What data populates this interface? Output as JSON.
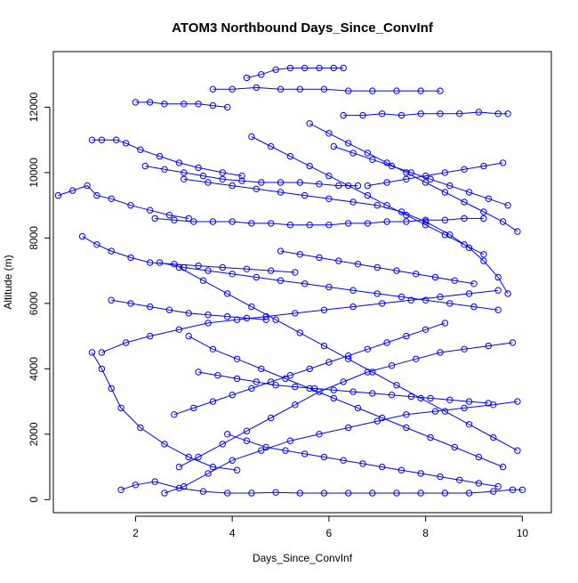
{
  "chart_data": {
    "type": "line",
    "title": "ATOM3 Northbound Days_Since_ConvInf",
    "xlabel": "Days_Since_ConvInf",
    "ylabel": "Altitude (m)",
    "xlim": [
      0.3,
      10.6
    ],
    "ylim": [
      -400,
      13700
    ],
    "x_ticks": [
      2,
      4,
      6,
      8,
      10
    ],
    "y_ticks": [
      0,
      2000,
      4000,
      6000,
      8000,
      10000,
      12000
    ],
    "x_tick_labels": [
      "2",
      "4",
      "6",
      "8",
      "10"
    ],
    "y_tick_labels": [
      "0",
      "2000",
      "4000",
      "6000",
      "8000",
      "10000",
      "12000"
    ],
    "grid": false,
    "legend": "none",
    "marker": "open-circle",
    "colors": {
      "series": "#0000ff",
      "axes": "#000000",
      "background": "#ffffff"
    },
    "series": [
      {
        "segments": [
          {
            "x": [
              0.4,
              0.7,
              1.0,
              1.2,
              1.5,
              1.9,
              2.3,
              2.7,
              3.1
            ],
            "y": [
              9300,
              9450,
              9600,
              9300,
              9200,
              9000,
              8850,
              8700,
              8600
            ]
          },
          {
            "x": [
              1.1,
              1.3,
              1.6,
              1.8,
              2.1,
              2.5,
              2.9,
              3.3,
              3.8,
              4.2
            ],
            "y": [
              11000,
              11000,
              11000,
              10900,
              10700,
              10500,
              10300,
              10150,
              10000,
              9900
            ]
          },
          {
            "x": [
              2.0,
              2.3,
              2.6,
              3.0,
              3.3,
              3.6,
              3.9
            ],
            "y": [
              12150,
              12150,
              12100,
              12100,
              12100,
              12050,
              12000
            ]
          },
          {
            "x": [
              4.3,
              4.6,
              4.9,
              5.2,
              5.5,
              5.8,
              6.1,
              6.3
            ],
            "y": [
              12900,
              13000,
              13150,
              13200,
              13200,
              13200,
              13200,
              13200
            ]
          },
          {
            "x": [
              3.6,
              4.0,
              4.5,
              5.0,
              5.4,
              5.9,
              6.4,
              6.9,
              7.4,
              7.9,
              8.3
            ],
            "y": [
              12550,
              12550,
              12600,
              12550,
              12550,
              12550,
              12500,
              12500,
              12500,
              12500,
              12500
            ]
          },
          {
            "x": [
              6.3,
              6.7,
              7.1,
              7.5,
              7.9,
              8.3,
              8.7,
              9.1,
              9.5,
              9.7
            ],
            "y": [
              11750,
              11750,
              11800,
              11750,
              11800,
              11800,
              11800,
              11850,
              11800,
              11800
            ]
          },
          {
            "x": [
              0.9,
              1.2,
              1.5,
              1.9,
              2.3,
              2.8,
              3.3,
              3.8,
              4.3,
              4.8,
              5.3
            ],
            "y": [
              8050,
              7800,
              7600,
              7400,
              7250,
              7200,
              7150,
              7100,
              7050,
              7000,
              6950
            ]
          },
          {
            "x": [
              1.1,
              1.3,
              1.5,
              1.7,
              2.1,
              2.6,
              3.1,
              3.6,
              4.1
            ],
            "y": [
              4500,
              4000,
              3400,
              2800,
              2200,
              1700,
              1300,
              1000,
              900
            ]
          },
          {
            "x": [
              1.7,
              2.0,
              2.4,
              2.9,
              3.4,
              3.9,
              4.4,
              4.9,
              5.4,
              5.9,
              6.4,
              6.9,
              7.4,
              7.9,
              8.4,
              8.9,
              9.4,
              9.8,
              10.0
            ],
            "y": [
              300,
              450,
              550,
              350,
              250,
              200,
              200,
              220,
              200,
              200,
              200,
              200,
              200,
              200,
              200,
              200,
              250,
              300,
              300
            ]
          },
          {
            "x": [
              2.6,
              3.0,
              3.5,
              4.0,
              4.6,
              5.2,
              5.8,
              6.4,
              7.0,
              7.6,
              8.2,
              8.8,
              9.4,
              9.9
            ],
            "y": [
              200,
              400,
              800,
              1200,
              1500,
              1800,
              2000,
              2200,
              2400,
              2600,
              2700,
              2800,
              2900,
              3000
            ]
          },
          {
            "x": [
              1.3,
              1.8,
              2.3,
              2.9,
              3.5,
              4.1,
              4.7,
              5.3,
              5.9,
              6.5,
              7.1,
              7.7,
              8.3,
              8.9,
              9.5
            ],
            "y": [
              4500,
              4800,
              5000,
              5200,
              5400,
              5500,
              5600,
              5700,
              5800,
              5900,
              6000,
              6100,
              6200,
              6300,
              6400
            ]
          },
          {
            "x": [
              9.7,
              9.5,
              9.2,
              8.9,
              8.5,
              8.0,
              7.5,
              7.0,
              6.5,
              6.0,
              5.5,
              5.0,
              4.5,
              4.0,
              3.5,
              3.0
            ],
            "y": [
              6300,
              6800,
              7300,
              7700,
              8100,
              8500,
              8800,
              9000,
              9100,
              9200,
              9300,
              9400,
              9500,
              9600,
              9700,
              9800
            ]
          },
          {
            "x": [
              2.9,
              3.3,
              3.8,
              4.3,
              4.8,
              5.3,
              5.8,
              6.3,
              6.8,
              7.3,
              7.8,
              8.3,
              8.8,
              9.3,
              9.8
            ],
            "y": [
              1000,
              1300,
              1700,
              2100,
              2500,
              2900,
              3300,
              3600,
              3900,
              4100,
              4300,
              4500,
              4600,
              4700,
              4800
            ]
          },
          {
            "x": [
              9.9,
              9.4,
              8.9,
              8.4,
              7.9,
              7.4,
              6.9,
              6.4,
              5.9,
              5.4,
              4.9,
              4.4,
              3.9,
              3.4,
              2.9
            ],
            "y": [
              1500,
              1900,
              2300,
              2700,
              3100,
              3500,
              3900,
              4300,
              4700,
              5100,
              5500,
              5900,
              6300,
              6700,
              7100
            ]
          },
          {
            "x": [
              3.1,
              3.6,
              4.1,
              4.6,
              5.1,
              5.6,
              6.1,
              6.6,
              7.1,
              7.6,
              8.1,
              8.6,
              9.1,
              9.6
            ],
            "y": [
              5000,
              4600,
              4300,
              4000,
              3700,
              3400,
              3100,
              2800,
              2500,
              2200,
              1900,
              1600,
              1300,
              1000
            ]
          },
          {
            "x": [
              4.4,
              4.8,
              5.2,
              5.6,
              6.0,
              6.4,
              6.8,
              7.2,
              7.6,
              8.0,
              8.4,
              8.8,
              9.2
            ],
            "y": [
              11100,
              10800,
              10500,
              10200,
              9900,
              9600,
              9300,
              9000,
              8700,
              8400,
              8100,
              7800,
              7500
            ]
          },
          {
            "x": [
              2.2,
              2.6,
              3.0,
              3.4,
              3.8,
              4.2,
              4.6,
              5.0,
              5.4,
              5.8,
              6.2,
              6.6
            ],
            "y": [
              10200,
              10100,
              10000,
              9900,
              9800,
              9750,
              9700,
              9700,
              9700,
              9650,
              9600,
              9600
            ]
          },
          {
            "x": [
              6.8,
              7.2,
              7.6,
              8.0,
              8.4,
              8.8,
              9.2,
              9.6
            ],
            "y": [
              9600,
              9700,
              9800,
              9900,
              10000,
              10100,
              10200,
              10300
            ]
          },
          {
            "x": [
              2.4,
              2.8,
              3.2,
              3.6,
              4.0,
              4.4,
              4.8,
              5.2,
              5.6,
              6.0,
              6.4,
              6.8,
              7.2,
              7.6,
              8.0,
              8.4,
              8.8,
              9.2
            ],
            "y": [
              8600,
              8550,
              8500,
              8500,
              8500,
              8450,
              8450,
              8400,
              8400,
              8400,
              8450,
              8450,
              8500,
              8500,
              8550,
              8550,
              8600,
              8600
            ]
          },
          {
            "x": [
              2.5,
              3.0,
              3.5,
              4.0,
              4.5,
              5.0,
              5.5,
              6.0,
              6.5,
              7.0,
              7.5,
              8.0,
              8.5,
              9.0,
              9.5
            ],
            "y": [
              7250,
              7100,
              7000,
              6900,
              6800,
              6700,
              6600,
              6500,
              6400,
              6300,
              6200,
              6100,
              6000,
              5900,
              5800
            ]
          },
          {
            "x": [
              3.3,
              3.7,
              4.1,
              4.5,
              4.9,
              5.3,
              5.7,
              6.1,
              6.5,
              6.9,
              7.3,
              7.7,
              8.1,
              8.5,
              8.9,
              9.3
            ],
            "y": [
              3900,
              3800,
              3700,
              3600,
              3500,
              3450,
              3400,
              3350,
              3300,
              3250,
              3200,
              3150,
              3100,
              3050,
              3000,
              2950
            ]
          },
          {
            "x": [
              3.9,
              4.3,
              4.7,
              5.1,
              5.5,
              5.9,
              6.3,
              6.7,
              7.1,
              7.5,
              7.9,
              8.3,
              8.7,
              9.1,
              9.5
            ],
            "y": [
              2000,
              1800,
              1600,
              1500,
              1400,
              1300,
              1200,
              1100,
              1000,
              900,
              800,
              700,
              600,
              500,
              400
            ]
          },
          {
            "x": [
              6.1,
              6.5,
              6.9,
              7.3,
              7.7,
              8.1,
              8.5,
              8.9,
              9.3,
              9.7
            ],
            "y": [
              10800,
              10600,
              10400,
              10200,
              10000,
              9800,
              9600,
              9400,
              9200,
              9000
            ]
          },
          {
            "x": [
              1.5,
              1.9,
              2.3,
              2.7,
              3.1,
              3.5,
              3.9,
              4.3,
              4.7
            ],
            "y": [
              6100,
              6000,
              5900,
              5800,
              5700,
              5650,
              5600,
              5550,
              5500
            ]
          },
          {
            "x": [
              5.0,
              5.4,
              5.8,
              6.2,
              6.6,
              7.0,
              7.4,
              7.8,
              8.2,
              8.6,
              9.0
            ],
            "y": [
              7600,
              7500,
              7400,
              7300,
              7200,
              7100,
              7000,
              6900,
              6800,
              6700,
              6600
            ]
          },
          {
            "x": [
              2.8,
              3.2,
              3.6,
              4.0,
              4.4,
              4.8,
              5.2,
              5.6,
              6.0,
              6.4,
              6.8,
              7.2,
              7.6,
              8.0,
              8.4
            ],
            "y": [
              2600,
              2800,
              3000,
              3200,
              3400,
              3600,
              3800,
              4000,
              4200,
              4400,
              4600,
              4800,
              5000,
              5200,
              5400
            ]
          },
          {
            "x": [
              5.6,
              6.0,
              6.4,
              6.8,
              7.2,
              7.6,
              8.0,
              8.4,
              8.8,
              9.2,
              9.6,
              9.9
            ],
            "y": [
              11500,
              11200,
              10900,
              10600,
              10300,
              10000,
              9700,
              9400,
              9100,
              8800,
              8500,
              8200
            ]
          }
        ]
      }
    ]
  }
}
